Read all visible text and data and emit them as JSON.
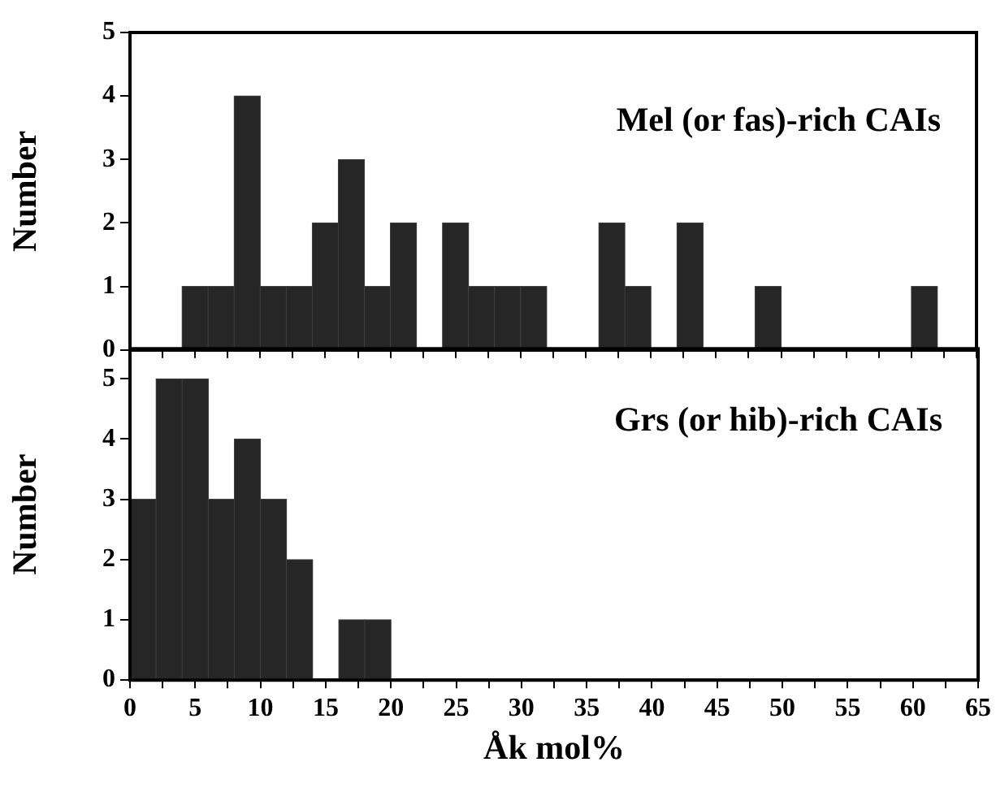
{
  "chart_data": [
    {
      "type": "histogram",
      "ylabel": "Number",
      "color": "#262626",
      "annotations": [
        "Mel (or fas)-rich CAIs"
      ],
      "bins": [
        4,
        6,
        8,
        10,
        12,
        14,
        16,
        18,
        20,
        22,
        24,
        26,
        28,
        30,
        32,
        34,
        36,
        38,
        40,
        42,
        44,
        46,
        48,
        50,
        52,
        54,
        56,
        58,
        60,
        62
      ],
      "values": [
        1,
        1,
        4,
        1,
        1,
        2,
        3,
        1,
        2,
        0,
        2,
        1,
        1,
        1,
        0,
        0,
        2,
        1,
        0,
        2,
        0,
        0,
        1,
        0,
        0,
        0,
        0,
        0,
        1
      ],
      "xlim": [
        0,
        65
      ],
      "xticks": [
        0,
        {
          "value": 2.5,
          "label": null
        },
        5,
        {
          "value": 7.5,
          "label": null
        },
        10,
        {
          "value": 12.5,
          "label": null
        },
        15,
        {
          "value": 17.5,
          "label": null
        },
        20,
        {
          "value": 22.5,
          "label": null
        },
        25,
        {
          "value": 27.5,
          "label": null
        },
        30,
        {
          "value": 32.5,
          "label": null
        },
        35,
        {
          "value": 37.5,
          "label": null
        },
        40,
        {
          "value": 42.5,
          "label": null
        },
        45,
        {
          "value": 47.5,
          "label": null
        },
        50,
        {
          "value": 52.5,
          "label": null
        },
        55,
        {
          "value": 57.5,
          "label": null
        },
        60,
        {
          "value": 62.5,
          "label": null
        },
        65
      ],
      "ylim": [
        0,
        5
      ],
      "yticks": [
        0,
        1,
        2,
        3,
        4,
        5
      ],
      "tick_labels": "y",
      "grid": false
    },
    {
      "type": "histogram",
      "ylabel": "Number",
      "xlabel": "Åk mol%",
      "color": "#262626",
      "annotations": [
        "Grs (or hib)-rich CAIs"
      ],
      "bins": [
        0,
        2,
        4,
        6,
        8,
        10,
        12,
        14,
        16,
        18,
        20
      ],
      "values": [
        3,
        5,
        5,
        3,
        4,
        3,
        2,
        0,
        1,
        1
      ],
      "xlim": [
        0,
        65
      ],
      "xticks": [
        0,
        {
          "value": 2.5,
          "label": null
        },
        5,
        {
          "value": 7.5,
          "label": null
        },
        10,
        {
          "value": 12.5,
          "label": null
        },
        15,
        {
          "value": 17.5,
          "label": null
        },
        20,
        {
          "value": 22.5,
          "label": null
        },
        25,
        {
          "value": 27.5,
          "label": null
        },
        30,
        {
          "value": 32.5,
          "label": null
        },
        35,
        {
          "value": 37.5,
          "label": null
        },
        40,
        {
          "value": 42.5,
          "label": null
        },
        45,
        {
          "value": 47.5,
          "label": null
        },
        50,
        {
          "value": 52.5,
          "label": null
        },
        55,
        {
          "value": 57.5,
          "label": null
        },
        60,
        {
          "value": 62.5,
          "label": null
        },
        65
      ],
      "ylim": [
        0,
        5.5
      ],
      "yticks": [
        0,
        1,
        2,
        3,
        4,
        5
      ],
      "grid": false
    }
  ]
}
